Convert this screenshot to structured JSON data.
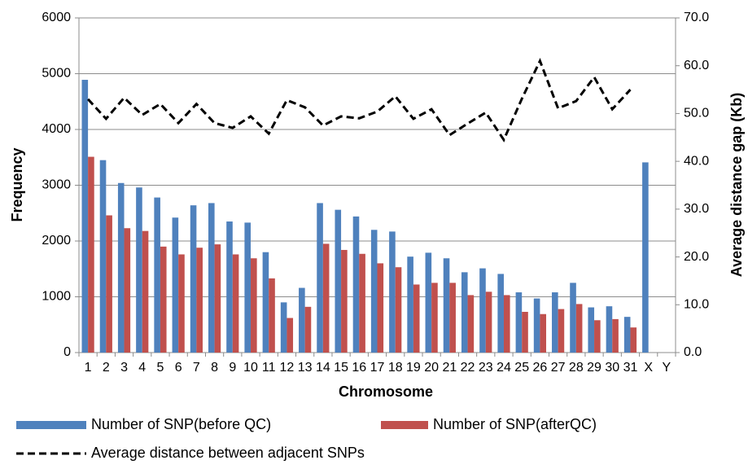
{
  "chart_data": {
    "type": "bar",
    "x_label": "Chromosome",
    "y_label": "Frequency",
    "y2_label": "Average distance gap (Kb)",
    "categories": [
      "1",
      "2",
      "3",
      "4",
      "5",
      "6",
      "7",
      "8",
      "9",
      "10",
      "11",
      "12",
      "13",
      "14",
      "15",
      "16",
      "17",
      "18",
      "19",
      "20",
      "21",
      "22",
      "23",
      "24",
      "25",
      "26",
      "27",
      "28",
      "29",
      "30",
      "31",
      "X",
      "Y"
    ],
    "series": [
      {
        "name": "Number of SNP(before QC)",
        "color": "#4f81bd",
        "type": "bar",
        "values": [
          4890,
          3450,
          3040,
          2960,
          2780,
          2420,
          2640,
          2680,
          2350,
          2330,
          1800,
          900,
          1160,
          2680,
          2560,
          2440,
          2200,
          2170,
          1720,
          1790,
          1690,
          1440,
          1510,
          1410,
          1080,
          970,
          1080,
          1250,
          810,
          830,
          640,
          3410,
          null
        ]
      },
      {
        "name": "Number of SNP(afterQC)",
        "color": "#c0504d",
        "type": "bar",
        "values": [
          3510,
          2460,
          2230,
          2180,
          1900,
          1760,
          1880,
          1940,
          1760,
          1690,
          1330,
          620,
          820,
          1950,
          1840,
          1770,
          1600,
          1530,
          1220,
          1250,
          1250,
          1030,
          1090,
          1030,
          730,
          690,
          780,
          870,
          580,
          600,
          450,
          null,
          null
        ]
      },
      {
        "name": "Average distance between adjacent SNPs",
        "color": "#000000",
        "type": "line",
        "axis": "y2",
        "values": [
          53.0,
          48.9,
          53.3,
          49.7,
          52.0,
          48.0,
          52.0,
          48.0,
          47.0,
          49.4,
          45.8,
          52.8,
          51.3,
          47.5,
          49.4,
          49.0,
          50.4,
          53.6,
          48.9,
          50.9,
          45.5,
          47.9,
          50.2,
          44.5,
          53.1,
          61.0,
          51.1,
          52.6,
          57.6,
          50.9,
          55.0,
          null,
          null
        ]
      }
    ],
    "ylim": [
      0,
      6000
    ],
    "yticks": [
      0,
      1000,
      2000,
      3000,
      4000,
      5000,
      6000
    ],
    "y2lim": [
      0,
      70
    ],
    "y2ticks": [
      {
        "value": 0,
        "label": "0.0"
      },
      {
        "value": 10,
        "label": "10.0"
      },
      {
        "value": 20,
        "label": "20.0"
      },
      {
        "value": 30,
        "label": "30.0"
      },
      {
        "value": 40,
        "label": "40.0"
      },
      {
        "value": 50,
        "label": "50.0"
      },
      {
        "value": 60,
        "label": "60.0"
      },
      {
        "value": 70,
        "label": "70.0"
      }
    ],
    "grid": true,
    "legend": "bottom"
  }
}
